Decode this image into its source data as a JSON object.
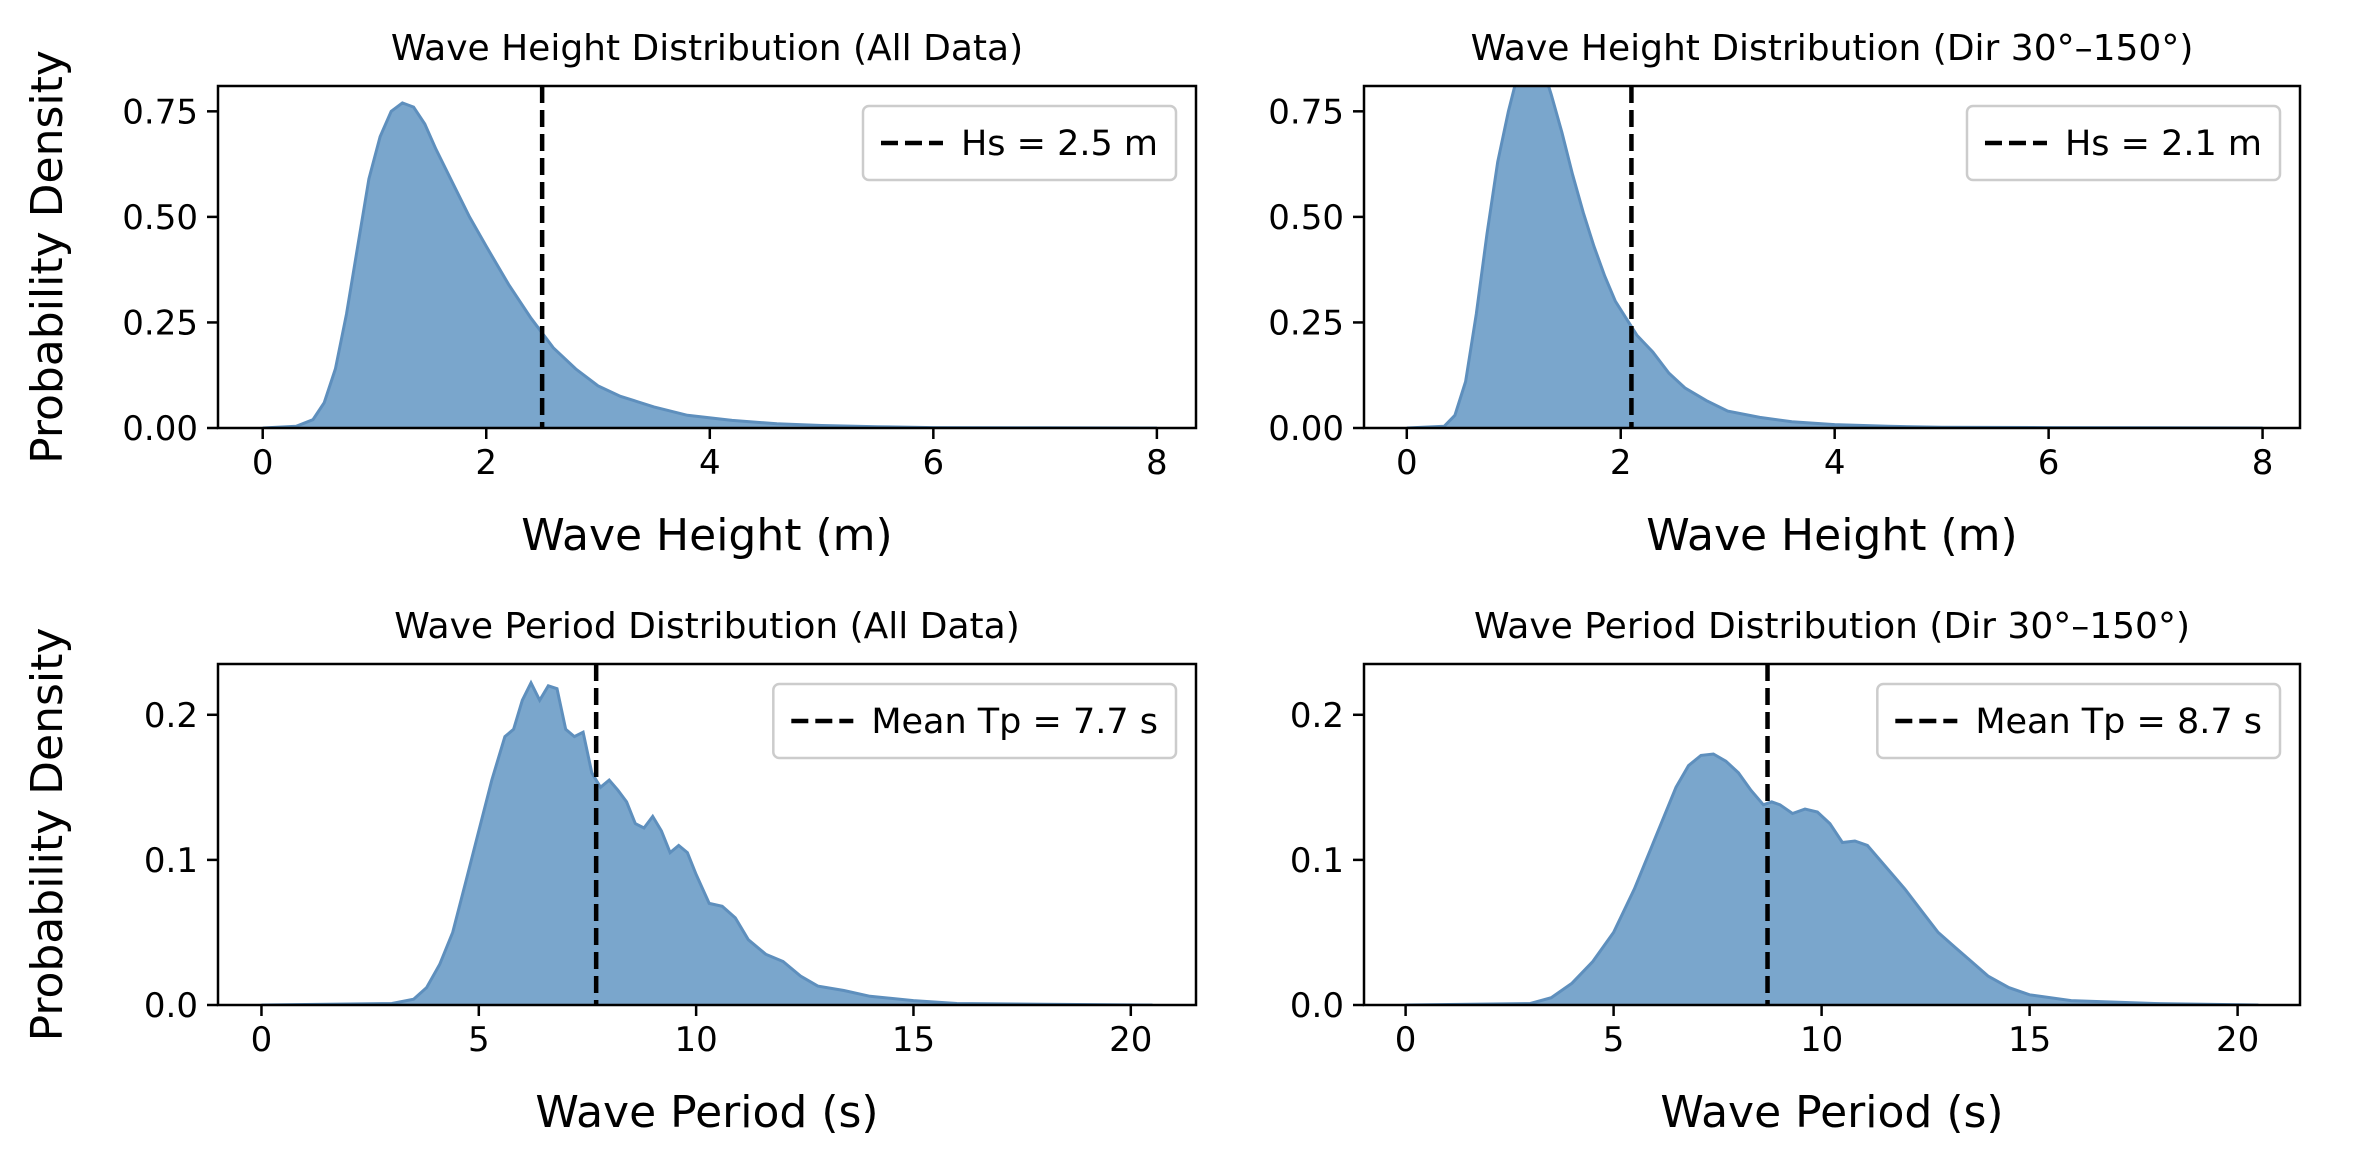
{
  "ylabel": "Probability Density",
  "chart_data": [
    {
      "type": "area",
      "title": "Wave Height Distribution (All Data)",
      "xlabel": "Wave Height (m)",
      "ylabel": "Probability Density",
      "xlim": [
        -0.4,
        8.35
      ],
      "ylim": [
        0,
        0.81
      ],
      "xticks": [
        "0",
        "2",
        "4",
        "6",
        "8"
      ],
      "xtick_values": [
        0,
        2,
        4,
        6,
        8
      ],
      "yticks": [
        "0.00",
        "0.25",
        "0.50",
        "0.75"
      ],
      "ytick_values": [
        0,
        0.25,
        0.5,
        0.75
      ],
      "x": [
        0,
        0.3,
        0.45,
        0.55,
        0.65,
        0.75,
        0.85,
        0.95,
        1.05,
        1.15,
        1.25,
        1.35,
        1.45,
        1.55,
        1.7,
        1.85,
        2.0,
        2.2,
        2.4,
        2.6,
        2.8,
        3.0,
        3.2,
        3.5,
        3.8,
        4.2,
        4.6,
        5.0,
        5.5,
        6.0,
        7.0,
        8.0
      ],
      "y": [
        0,
        0.004,
        0.02,
        0.06,
        0.14,
        0.27,
        0.43,
        0.59,
        0.69,
        0.75,
        0.77,
        0.76,
        0.72,
        0.66,
        0.58,
        0.5,
        0.43,
        0.34,
        0.26,
        0.19,
        0.14,
        0.1,
        0.075,
        0.05,
        0.03,
        0.018,
        0.01,
        0.006,
        0.003,
        0.001,
        0.0005,
        0
      ],
      "vline": {
        "x": 2.5,
        "label": "Hs = 2.5 m"
      },
      "legend": "top-right",
      "fill_color": "#7aa6cc",
      "line_color": "#5e8fbd"
    },
    {
      "type": "area",
      "title": "Wave Height Distribution (Dir 30°–150°)",
      "xlabel": "Wave Height (m)",
      "ylabel": "",
      "xlim": [
        -0.4,
        8.35
      ],
      "ylim": [
        0,
        0.81
      ],
      "xticks": [
        "0",
        "2",
        "4",
        "6",
        "8"
      ],
      "xtick_values": [
        0,
        2,
        4,
        6,
        8
      ],
      "yticks": [
        "0.00",
        "0.25",
        "0.50",
        "0.75"
      ],
      "ytick_values": [
        0,
        0.25,
        0.5,
        0.75
      ],
      "x": [
        0,
        0.35,
        0.45,
        0.55,
        0.65,
        0.75,
        0.85,
        0.95,
        1.05,
        1.15,
        1.25,
        1.35,
        1.45,
        1.55,
        1.65,
        1.75,
        1.85,
        1.95,
        2.05,
        2.15,
        2.3,
        2.45,
        2.6,
        2.8,
        3.0,
        3.3,
        3.6,
        4.0,
        4.5,
        5.0,
        6.0,
        8.0
      ],
      "y": [
        0,
        0.004,
        0.03,
        0.11,
        0.27,
        0.46,
        0.63,
        0.75,
        0.85,
        0.89,
        0.87,
        0.79,
        0.7,
        0.6,
        0.51,
        0.43,
        0.36,
        0.3,
        0.26,
        0.22,
        0.18,
        0.13,
        0.095,
        0.065,
        0.04,
        0.025,
        0.015,
        0.008,
        0.004,
        0.002,
        0.001,
        0
      ],
      "vline": {
        "x": 2.1,
        "label": "Hs = 2.1 m"
      },
      "legend": "top-right",
      "fill_color": "#7aa6cc",
      "line_color": "#5e8fbd"
    },
    {
      "type": "area",
      "title": "Wave Period Distribution (All Data)",
      "xlabel": "Wave Period (s)",
      "ylabel": "Probability Density",
      "xlim": [
        -1.0,
        21.5
      ],
      "ylim": [
        0,
        0.235
      ],
      "xticks": [
        "0",
        "5",
        "10",
        "15",
        "20"
      ],
      "xtick_values": [
        0,
        5,
        10,
        15,
        20
      ],
      "yticks": [
        "0.0",
        "0.1",
        "0.2"
      ],
      "ytick_values": [
        0,
        0.1,
        0.2
      ],
      "x": [
        0,
        3.0,
        3.5,
        3.8,
        4.1,
        4.4,
        4.7,
        5.0,
        5.3,
        5.6,
        5.8,
        6.0,
        6.2,
        6.4,
        6.6,
        6.8,
        7.0,
        7.2,
        7.4,
        7.6,
        7.8,
        8.0,
        8.2,
        8.4,
        8.6,
        8.8,
        9.0,
        9.2,
        9.4,
        9.6,
        9.8,
        10.0,
        10.3,
        10.6,
        10.9,
        11.2,
        11.6,
        12.0,
        12.4,
        12.8,
        13.4,
        14.0,
        15.0,
        16.0,
        18.0,
        20.5
      ],
      "y": [
        0,
        0.001,
        0.004,
        0.012,
        0.028,
        0.05,
        0.085,
        0.12,
        0.155,
        0.185,
        0.19,
        0.21,
        0.222,
        0.21,
        0.22,
        0.218,
        0.19,
        0.185,
        0.188,
        0.16,
        0.15,
        0.155,
        0.148,
        0.14,
        0.125,
        0.122,
        0.13,
        0.12,
        0.105,
        0.11,
        0.105,
        0.09,
        0.07,
        0.068,
        0.06,
        0.045,
        0.035,
        0.03,
        0.02,
        0.013,
        0.01,
        0.006,
        0.003,
        0.001,
        0.0005,
        0
      ],
      "vline": {
        "x": 7.7,
        "label": "Mean Tp = 7.7 s"
      },
      "legend": "top-right",
      "fill_color": "#7aa6cc",
      "line_color": "#5e8fbd"
    },
    {
      "type": "area",
      "title": "Wave Period Distribution (Dir 30°–150°)",
      "xlabel": "Wave Period (s)",
      "ylabel": "",
      "xlim": [
        -1.0,
        21.5
      ],
      "ylim": [
        0,
        0.235
      ],
      "xticks": [
        "0",
        "5",
        "10",
        "15",
        "20"
      ],
      "xtick_values": [
        0,
        5,
        10,
        15,
        20
      ],
      "yticks": [
        "0.0",
        "0.1",
        "0.2"
      ],
      "ytick_values": [
        0,
        0.1,
        0.2
      ],
      "x": [
        0,
        3.0,
        3.5,
        4.0,
        4.5,
        5.0,
        5.5,
        6.0,
        6.5,
        6.8,
        7.1,
        7.4,
        7.7,
        8.0,
        8.3,
        8.6,
        8.8,
        9.0,
        9.3,
        9.6,
        9.9,
        10.2,
        10.5,
        10.8,
        11.1,
        11.4,
        11.7,
        12.0,
        12.4,
        12.8,
        13.2,
        13.6,
        14.0,
        14.5,
        15.0,
        16.0,
        18.0,
        20.5
      ],
      "y": [
        0,
        0.001,
        0.005,
        0.015,
        0.03,
        0.05,
        0.08,
        0.115,
        0.15,
        0.165,
        0.172,
        0.173,
        0.168,
        0.16,
        0.148,
        0.138,
        0.14,
        0.138,
        0.132,
        0.135,
        0.133,
        0.125,
        0.112,
        0.113,
        0.11,
        0.1,
        0.09,
        0.08,
        0.065,
        0.05,
        0.04,
        0.03,
        0.02,
        0.012,
        0.007,
        0.003,
        0.001,
        0
      ],
      "vline": {
        "x": 8.7,
        "label": "Mean Tp = 8.7 s"
      },
      "legend": "top-right",
      "fill_color": "#7aa6cc",
      "line_color": "#5e8fbd"
    }
  ]
}
